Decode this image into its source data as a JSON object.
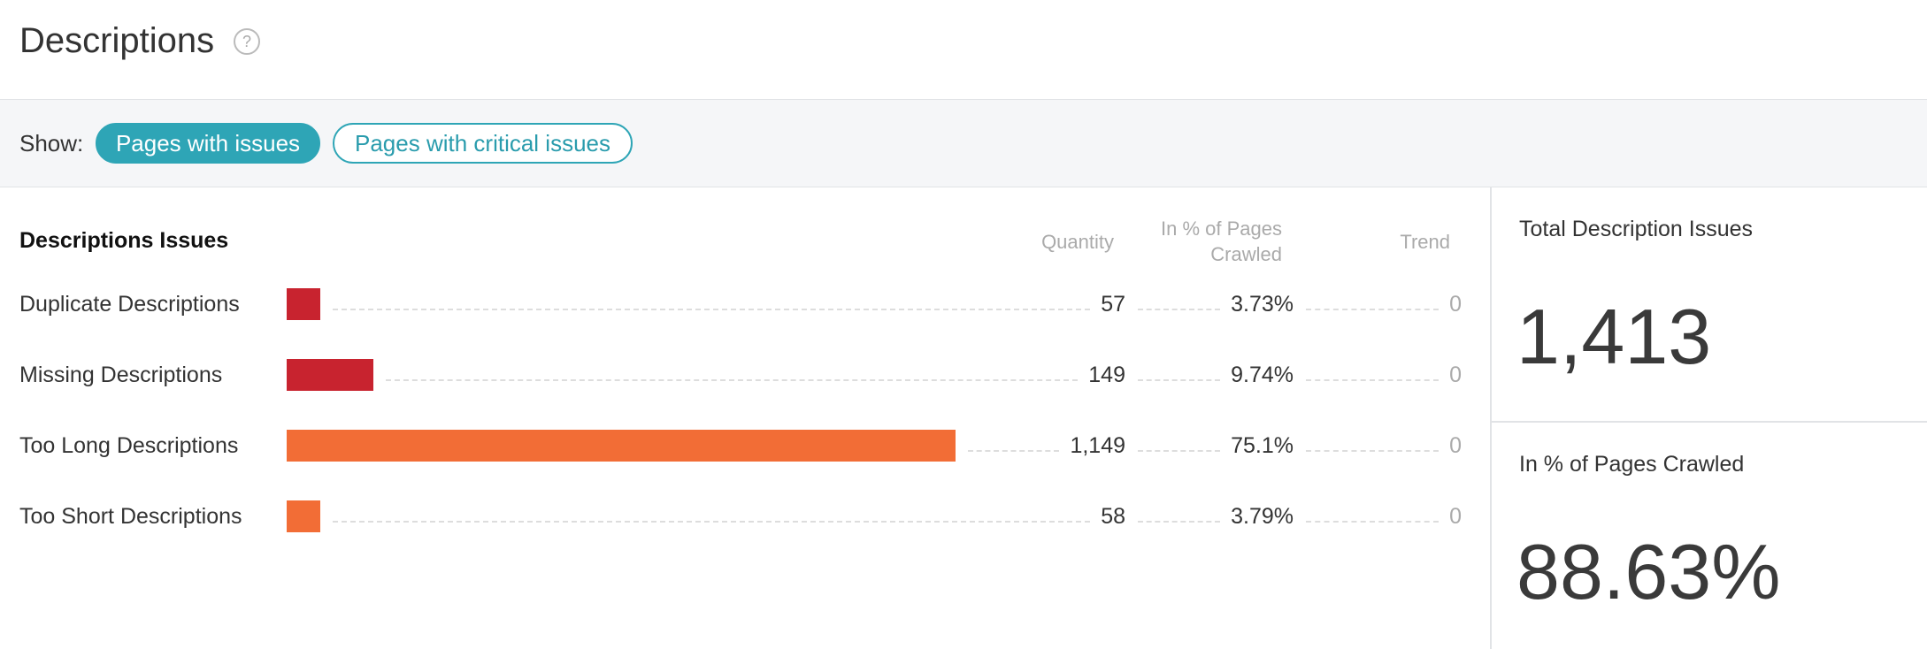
{
  "header": {
    "title": "Descriptions"
  },
  "filters": {
    "label": "Show:",
    "options": [
      "Pages with issues",
      "Pages with critical issues"
    ]
  },
  "table": {
    "title": "Descriptions Issues",
    "columns": [
      "Quantity",
      "In % of Pages Crawled",
      "Trend"
    ],
    "rows": [
      {
        "name": "Duplicate Descriptions",
        "quantity": 57,
        "quantity_label": "57",
        "percent": "3.73%",
        "trend": 0,
        "color": "#c8232f"
      },
      {
        "name": "Missing Descriptions",
        "quantity": 149,
        "quantity_label": "149",
        "percent": "9.74%",
        "trend": 0,
        "color": "#c8232f"
      },
      {
        "name": "Too Long Descriptions",
        "quantity": 1149,
        "quantity_label": "1,149",
        "percent": "75.1%",
        "trend": 0,
        "color": "#f26d36"
      },
      {
        "name": "Too Short Descriptions",
        "quantity": 58,
        "quantity_label": "58",
        "percent": "3.79%",
        "trend": 0,
        "color": "#f26d36"
      }
    ]
  },
  "summary": [
    {
      "label": "Total Description Issues",
      "value": "1,413"
    },
    {
      "label": "In % of Pages Crawled",
      "value": "88.63%"
    }
  ]
}
